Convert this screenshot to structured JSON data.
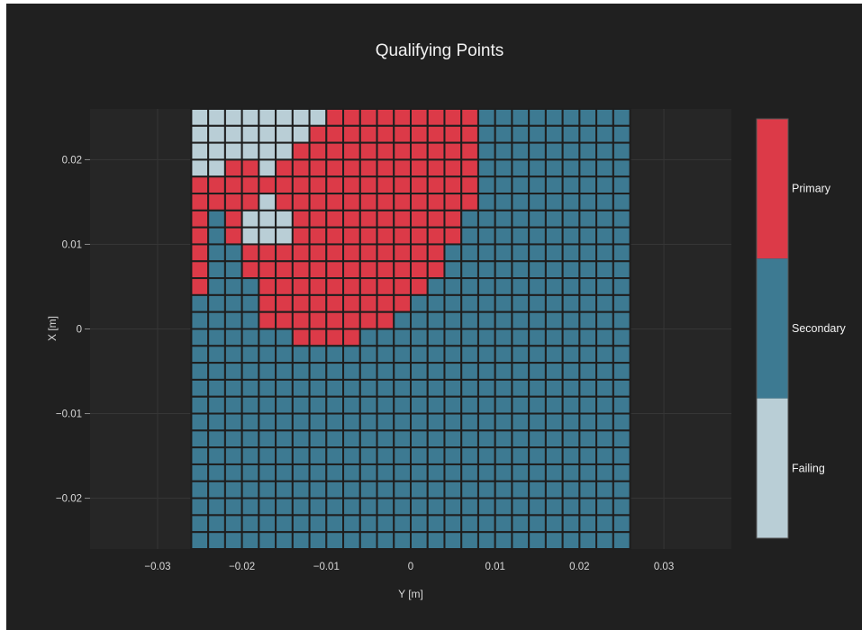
{
  "chart_data": {
    "type": "heatmap",
    "title": "Qualifying Points",
    "xlabel": "Y [m]",
    "ylabel": "X [m]",
    "xlim": [
      -0.038,
      0.038
    ],
    "ylim": [
      -0.026,
      0.026
    ],
    "grid": true,
    "x_ticks": [
      {
        "value": -0.03,
        "label": "−0.03"
      },
      {
        "value": -0.02,
        "label": "−0.02"
      },
      {
        "value": -0.01,
        "label": "−0.01"
      },
      {
        "value": 0,
        "label": "0"
      },
      {
        "value": 0.01,
        "label": "0.01"
      },
      {
        "value": 0.02,
        "label": "0.02"
      },
      {
        "value": 0.03,
        "label": "0.03"
      }
    ],
    "y_ticks": [
      {
        "value": 0.02,
        "label": "0.02"
      },
      {
        "value": 0.01,
        "label": "0.01"
      },
      {
        "value": 0,
        "label": "0"
      },
      {
        "value": -0.01,
        "label": "−0.01"
      },
      {
        "value": -0.02,
        "label": "−0.02"
      }
    ],
    "grid_spec": {
      "x_start": -0.025,
      "x_step": 0.002,
      "columns": 26,
      "y_start": 0.025,
      "y_step": -0.002,
      "rows": 26
    },
    "categories": [
      {
        "code": "P",
        "name": "Primary",
        "color": "#dc3a48"
      },
      {
        "code": "S",
        "name": "Secondary",
        "color": "#3d7a92"
      },
      {
        "code": "F",
        "name": "Failing",
        "color": "#b9ced6"
      }
    ],
    "legend_position": "right",
    "rows": [
      "FFFFFFFFPPPPPPPPPSSSSSSSSS",
      "FFFFFFFPPPPPPPPPPSSSSSSSSS",
      "FFFFFFPPPPPPPPPPPSSSSSSSSS",
      "FFPPFPPPPPPPPPPPPSSSSSSSSS",
      "PPPPPPPPPPPPPPPPPSSSSSSSSS",
      "PPPPFPPPPPPPPPPPPSSSSSSSSS",
      "PSPFFFPPPPPPPPPPSSSSSSSSSS",
      "PSPFFFPPPPPPPPPPSSSSSSSSSS",
      "PSSPPPPPPPPPPPPSSSSSSSSSSS",
      "PSSPPPPPPPPPPPPSSSSSSSSSSS",
      "PSSSPPPPPPPPPPSSSSSSSSSSSS",
      "SSSSPPPPPPPPPSSSSSSSSSSSSS",
      "SSSSPPPPPPPPSSSSSSSSSSSSSS",
      "SSSSSSPPPPSSSSSSSSSSSSSSSS",
      "SSSSSSSSSSSSSSSSSSSSSSSSSS",
      "SSSSSSSSSSSSSSSSSSSSSSSSSS",
      "SSSSSSSSSSSSSSSSSSSSSSSSSS",
      "SSSSSSSSSSSSSSSSSSSSSSSSSS",
      "SSSSSSSSSSSSSSSSSSSSSSSSSS",
      "SSSSSSSSSSSSSSSSSSSSSSSSSS",
      "SSSSSSSSSSSSSSSSSSSSSSSSSS",
      "SSSSSSSSSSSSSSSSSSSSSSSSSS",
      "SSSSSSSSSSSSSSSSSSSSSSSSSS",
      "SSSSSSSSSSSSSSSSSSSSSSSSSS",
      "SSSSSSSSSSSSSSSSSSSSSSSSSS",
      "SSSSSSSSSSSSSSSSSSSSSSSSSS"
    ]
  },
  "colors": {
    "paper": "#202020",
    "plot_bg": "#262626",
    "grid": "#363636",
    "cell_border": "#1e1e1e",
    "legend_border": "#555555"
  }
}
